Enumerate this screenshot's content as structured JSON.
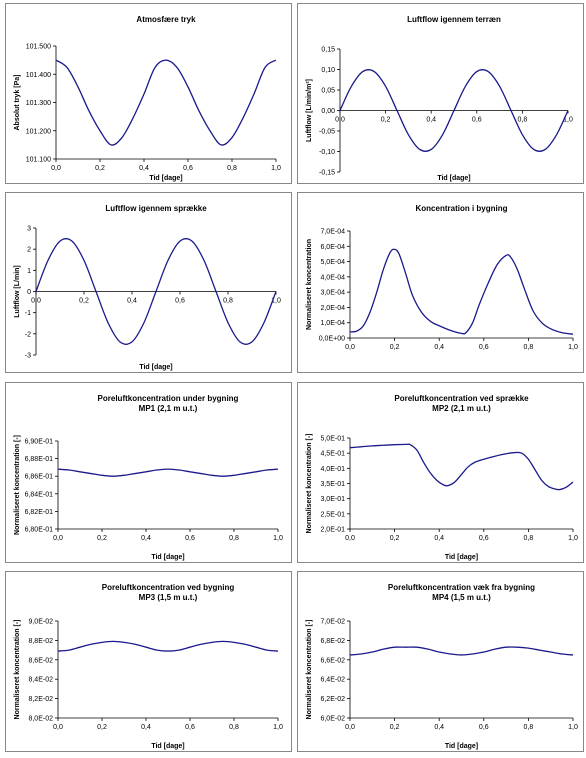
{
  "chart_data": [
    {
      "type": "line",
      "title": "Atmosfære tryk",
      "subtitle": "",
      "xlabel": "Tid [dage]",
      "ylabel": "Absolut tryk [Pa]",
      "xlim": [
        0,
        1
      ],
      "ylim": [
        101100,
        101500
      ],
      "xticks": [
        0,
        0.2,
        0.4,
        0.6,
        0.8,
        1.0
      ],
      "xtick_labels": [
        "0,0",
        "0,2",
        "0,4",
        "0,6",
        "0,8",
        "1,0"
      ],
      "yticks": [
        101100,
        101200,
        101300,
        101400,
        101500
      ],
      "ytick_labels": [
        "101.100",
        "101.200",
        "101.300",
        "101.400",
        "101.500"
      ],
      "x_axis_at_zero": false,
      "series": [
        {
          "color": "#1a1a8c",
          "x": [
            0,
            0.05,
            0.1,
            0.15,
            0.2,
            0.25,
            0.3,
            0.35,
            0.4,
            0.45,
            0.5,
            0.55,
            0.6,
            0.65,
            0.7,
            0.75,
            0.8,
            0.85,
            0.9,
            0.95,
            1.0
          ],
          "y": [
            101450,
            101424,
            101355,
            101270,
            101200,
            101150,
            101176,
            101245,
            101330,
            101424,
            101450,
            101424,
            101355,
            101270,
            101200,
            101150,
            101176,
            101245,
            101330,
            101424,
            101450
          ]
        }
      ]
    },
    {
      "type": "line",
      "title": "Luftflow igennem terræn",
      "subtitle": "",
      "xlabel": "Tid [dage]",
      "ylabel": "Luftflow [L/min/m²]",
      "xlim": [
        0,
        1
      ],
      "ylim": [
        -0.15,
        0.15
      ],
      "xticks": [
        0,
        0.2,
        0.4,
        0.6,
        0.8,
        1.0
      ],
      "xtick_labels": [
        "0,0",
        "0,2",
        "0,4",
        "0,6",
        "0,8",
        "1,0"
      ],
      "yticks": [
        -0.15,
        -0.1,
        -0.05,
        0,
        0.05,
        0.1,
        0.15
      ],
      "ytick_labels": [
        "-0,15",
        "-0,10",
        "-0,05",
        "0,00",
        "0,05",
        "0,10",
        "0,15"
      ],
      "x_axis_at_zero": true,
      "series": [
        {
          "color": "#1a1a8c",
          "x": [
            0,
            0.05,
            0.1,
            0.15,
            0.2,
            0.25,
            0.3,
            0.35,
            0.4,
            0.45,
            0.5,
            0.55,
            0.6,
            0.65,
            0.7,
            0.75,
            0.8,
            0.85,
            0.9,
            0.95,
            1.0
          ],
          "y": [
            0,
            0.059,
            0.095,
            0.095,
            0.059,
            0,
            -0.059,
            -0.095,
            -0.095,
            -0.059,
            0,
            0.059,
            0.095,
            0.095,
            0.059,
            0,
            -0.059,
            -0.095,
            -0.095,
            -0.059,
            0
          ]
        }
      ]
    },
    {
      "type": "line",
      "title": "Luftflow igennem sprække",
      "subtitle": "",
      "xlabel": "Tid [dage]",
      "ylabel": "Luftflow [L/min]",
      "xlim": [
        0,
        1
      ],
      "ylim": [
        -3,
        3
      ],
      "xticks": [
        0,
        0.2,
        0.4,
        0.6,
        0.8,
        1.0
      ],
      "xtick_labels": [
        "0,0",
        "0,2",
        "0,4",
        "0,6",
        "0,8",
        "1,0"
      ],
      "yticks": [
        -3,
        -2,
        -1,
        0,
        1,
        2,
        3
      ],
      "ytick_labels": [
        "-3",
        "-2",
        "-1",
        "0",
        "1",
        "2",
        "3"
      ],
      "x_axis_at_zero": true,
      "series": [
        {
          "color": "#1a1a8c",
          "x": [
            0,
            0.05,
            0.1,
            0.15,
            0.2,
            0.25,
            0.3,
            0.35,
            0.4,
            0.45,
            0.5,
            0.55,
            0.6,
            0.65,
            0.7,
            0.75,
            0.8,
            0.85,
            0.9,
            0.95,
            1.0
          ],
          "y": [
            0,
            1.47,
            2.38,
            2.38,
            1.47,
            0,
            -1.47,
            -2.38,
            -2.38,
            -1.47,
            0,
            1.47,
            2.38,
            2.38,
            1.47,
            0,
            -1.47,
            -2.38,
            -2.38,
            -1.47,
            0
          ]
        }
      ]
    },
    {
      "type": "line",
      "title": "Koncentration i bygning",
      "subtitle": "",
      "xlabel": "",
      "ylabel": "Normaliseret koncentration",
      "xlim": [
        0,
        1
      ],
      "ylim": [
        0,
        0.0007
      ],
      "xticks": [
        0,
        0.2,
        0.4,
        0.6,
        0.8,
        1.0
      ],
      "xtick_labels": [
        "0,0",
        "0,2",
        "0,4",
        "0,6",
        "0,8",
        "1,0"
      ],
      "yticks": [
        0,
        0.0001,
        0.0002,
        0.0003,
        0.0004,
        0.0005,
        0.0006,
        0.0007
      ],
      "ytick_labels": [
        "0,0E+00",
        "1,0E-04",
        "2,0E-04",
        "3,0E-04",
        "4,0E-04",
        "5,0E-04",
        "6,0E-04",
        "7,0E-04"
      ],
      "x_axis_at_zero": false,
      "series": [
        {
          "color": "#1a1a8c",
          "x": [
            0,
            0.03,
            0.06,
            0.09,
            0.12,
            0.15,
            0.18,
            0.2,
            0.22,
            0.25,
            0.28,
            0.32,
            0.36,
            0.4,
            0.45,
            0.5,
            0.52,
            0.55,
            0.58,
            0.62,
            0.66,
            0.7,
            0.72,
            0.75,
            0.78,
            0.82,
            0.86,
            0.9,
            0.95,
            1.0
          ],
          "y": [
            4e-05,
            4.5e-05,
            8e-05,
            0.00017,
            0.0003,
            0.00045,
            0.00056,
            0.00058,
            0.00055,
            0.00042,
            0.00028,
            0.00017,
            0.00011,
            8e-05,
            5e-05,
            3e-05,
            3.5e-05,
            0.0001,
            0.00022,
            0.00036,
            0.00048,
            0.00054,
            0.00053,
            0.00045,
            0.00033,
            0.00018,
            0.0001,
            6e-05,
            3.5e-05,
            2.5e-05
          ]
        }
      ]
    },
    {
      "type": "line",
      "title": "Poreluftkoncentration under bygning",
      "subtitle": "MP1 (2,1 m u.t.)",
      "xlabel": "Tid [dage]",
      "ylabel": "Normaliseret koncentration [-]",
      "xlim": [
        0,
        1
      ],
      "ylim": [
        0.68,
        0.69
      ],
      "xticks": [
        0,
        0.2,
        0.4,
        0.6,
        0.8,
        1.0
      ],
      "xtick_labels": [
        "0,0",
        "0,2",
        "0,4",
        "0,6",
        "0,8",
        "1,0"
      ],
      "yticks": [
        0.68,
        0.682,
        0.684,
        0.686,
        0.688,
        0.69
      ],
      "ytick_labels": [
        "6,80E-01",
        "6,82E-01",
        "6,84E-01",
        "6,86E-01",
        "6,88E-01",
        "6,90E-01"
      ],
      "x_axis_at_zero": false,
      "series": [
        {
          "color": "#1a1a8c",
          "x": [
            0,
            0.05,
            0.1,
            0.15,
            0.2,
            0.25,
            0.3,
            0.35,
            0.4,
            0.45,
            0.5,
            0.55,
            0.6,
            0.65,
            0.7,
            0.75,
            0.8,
            0.85,
            0.9,
            0.95,
            1.0
          ],
          "y": [
            0.6868,
            0.6867,
            0.6865,
            0.6863,
            0.6861,
            0.686,
            0.6861,
            0.6863,
            0.6865,
            0.6867,
            0.6868,
            0.6867,
            0.6865,
            0.6863,
            0.6861,
            0.686,
            0.6861,
            0.6863,
            0.6865,
            0.6867,
            0.6868
          ]
        }
      ]
    },
    {
      "type": "line",
      "title": "Poreluftkoncentration ved sprække",
      "subtitle": "MP2 (2,1 m u.t.)",
      "xlabel": "Tid [dage]",
      "ylabel": "Normaliseret koncentration [-]",
      "xlim": [
        0,
        1
      ],
      "ylim": [
        0.2,
        0.5
      ],
      "xticks": [
        0,
        0.2,
        0.4,
        0.6,
        0.8,
        1.0
      ],
      "xtick_labels": [
        "0,0",
        "0,2",
        "0,4",
        "0,6",
        "0,8",
        "1,0"
      ],
      "yticks": [
        0.2,
        0.25,
        0.3,
        0.35,
        0.4,
        0.45,
        0.5
      ],
      "ytick_labels": [
        "2,0E-01",
        "2,5E-01",
        "3,0E-01",
        "3,5E-01",
        "4,0E-01",
        "4,5E-01",
        "5,0E-01"
      ],
      "x_axis_at_zero": false,
      "series": [
        {
          "color": "#1a1a8c",
          "x": [
            0,
            0.05,
            0.1,
            0.15,
            0.2,
            0.25,
            0.27,
            0.3,
            0.33,
            0.36,
            0.39,
            0.42,
            0.44,
            0.47,
            0.5,
            0.53,
            0.56,
            0.6,
            0.65,
            0.7,
            0.74,
            0.77,
            0.8,
            0.83,
            0.86,
            0.89,
            0.92,
            0.94,
            0.97,
            1.0
          ],
          "y": [
            0.468,
            0.471,
            0.474,
            0.476,
            0.478,
            0.479,
            0.478,
            0.46,
            0.42,
            0.385,
            0.36,
            0.345,
            0.343,
            0.355,
            0.38,
            0.405,
            0.42,
            0.43,
            0.44,
            0.448,
            0.452,
            0.45,
            0.43,
            0.395,
            0.36,
            0.34,
            0.332,
            0.33,
            0.338,
            0.355
          ]
        }
      ]
    },
    {
      "type": "line",
      "title": "Poreluftkoncentration ved bygning",
      "subtitle": "MP3 (1,5 m u.t.)",
      "xlabel": "Tid [dage]",
      "ylabel": "Normaliseret koncentration [-]",
      "xlim": [
        0,
        1
      ],
      "ylim": [
        0.08,
        0.09
      ],
      "xticks": [
        0,
        0.2,
        0.4,
        0.6,
        0.8,
        1.0
      ],
      "xtick_labels": [
        "0,0",
        "0,2",
        "0,4",
        "0,6",
        "0,8",
        "1,0"
      ],
      "yticks": [
        0.08,
        0.082,
        0.084,
        0.086,
        0.088,
        0.09
      ],
      "ytick_labels": [
        "8,0E-02",
        "8,2E-02",
        "8,4E-02",
        "8,6E-02",
        "8,8E-02",
        "9,0E-02"
      ],
      "x_axis_at_zero": false,
      "series": [
        {
          "color": "#1a1a8c",
          "x": [
            0,
            0.05,
            0.1,
            0.15,
            0.2,
            0.25,
            0.3,
            0.35,
            0.4,
            0.45,
            0.5,
            0.55,
            0.6,
            0.65,
            0.7,
            0.75,
            0.8,
            0.85,
            0.9,
            0.95,
            1.0
          ],
          "y": [
            0.0869,
            0.087,
            0.0873,
            0.0876,
            0.0878,
            0.0879,
            0.0878,
            0.0876,
            0.0873,
            0.087,
            0.0869,
            0.087,
            0.0873,
            0.0876,
            0.0878,
            0.0879,
            0.0878,
            0.0876,
            0.0873,
            0.087,
            0.0869
          ]
        }
      ]
    },
    {
      "type": "line",
      "title": "Poreluftkoncentration væk fra bygning",
      "subtitle": "MP4 (1,5 m u.t.)",
      "xlabel": "Tid [dage]",
      "ylabel": "Normaliseret koncentration [-]",
      "xlim": [
        0,
        1
      ],
      "ylim": [
        0.06,
        0.07
      ],
      "xticks": [
        0,
        0.2,
        0.4,
        0.6,
        0.8,
        1.0
      ],
      "xtick_labels": [
        "0,0",
        "0,2",
        "0,4",
        "0,6",
        "0,8",
        "1,0"
      ],
      "yticks": [
        0.06,
        0.062,
        0.064,
        0.066,
        0.068,
        0.07
      ],
      "ytick_labels": [
        "6,0E-02",
        "6,2E-02",
        "6,4E-02",
        "6,6E-02",
        "6,8E-02",
        "7,0E-02"
      ],
      "x_axis_at_zero": false,
      "series": [
        {
          "color": "#1a1a8c",
          "x": [
            0,
            0.05,
            0.1,
            0.15,
            0.2,
            0.25,
            0.3,
            0.35,
            0.4,
            0.45,
            0.5,
            0.55,
            0.6,
            0.65,
            0.7,
            0.75,
            0.8,
            0.85,
            0.9,
            0.95,
            1.0
          ],
          "y": [
            0.0665,
            0.0666,
            0.0668,
            0.0671,
            0.0673,
            0.0673,
            0.0673,
            0.0671,
            0.0668,
            0.0666,
            0.0665,
            0.0666,
            0.0668,
            0.0671,
            0.0673,
            0.0673,
            0.0672,
            0.067,
            0.0668,
            0.0666,
            0.0665
          ]
        }
      ]
    }
  ]
}
